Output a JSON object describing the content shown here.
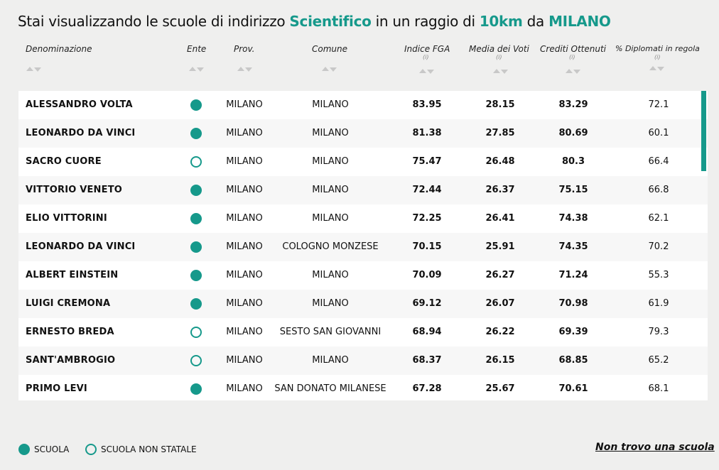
{
  "title": {
    "prefix": "Stai visualizzando le scuole di indirizzo",
    "type": "Scientifico",
    "mid": "in un raggio di",
    "radius": "10km",
    "connector": "da",
    "city": "MILANO"
  },
  "columns": {
    "name": "Denominazione",
    "ente": "Ente",
    "prov": "Prov.",
    "comune": "Comune",
    "fga": "Indice FGA",
    "media": "Media dei Voti",
    "crediti": "Crediti Ottenuti",
    "diplomati": "% Diplomati in regola",
    "info": "(i)"
  },
  "rows": [
    {
      "name": "ALESSANDRO VOLTA",
      "statale": true,
      "prov": "MILANO",
      "comune": "MILANO",
      "fga": "83.95",
      "media": "28.15",
      "crediti": "83.29",
      "diplomati": "72.1"
    },
    {
      "name": "LEONARDO DA VINCI",
      "statale": true,
      "prov": "MILANO",
      "comune": "MILANO",
      "fga": "81.38",
      "media": "27.85",
      "crediti": "80.69",
      "diplomati": "60.1"
    },
    {
      "name": "SACRO CUORE",
      "statale": false,
      "prov": "MILANO",
      "comune": "MILANO",
      "fga": "75.47",
      "media": "26.48",
      "crediti": "80.3",
      "diplomati": "66.4"
    },
    {
      "name": "VITTORIO VENETO",
      "statale": true,
      "prov": "MILANO",
      "comune": "MILANO",
      "fga": "72.44",
      "media": "26.37",
      "crediti": "75.15",
      "diplomati": "66.8"
    },
    {
      "name": "ELIO VITTORINI",
      "statale": true,
      "prov": "MILANO",
      "comune": "MILANO",
      "fga": "72.25",
      "media": "26.41",
      "crediti": "74.38",
      "diplomati": "62.1"
    },
    {
      "name": "LEONARDO DA VINCI",
      "statale": true,
      "prov": "MILANO",
      "comune": "COLOGNO MONZESE",
      "fga": "70.15",
      "media": "25.91",
      "crediti": "74.35",
      "diplomati": "70.2"
    },
    {
      "name": "ALBERT EINSTEIN",
      "statale": true,
      "prov": "MILANO",
      "comune": "MILANO",
      "fga": "70.09",
      "media": "26.27",
      "crediti": "71.24",
      "diplomati": "55.3"
    },
    {
      "name": "LUIGI CREMONA",
      "statale": true,
      "prov": "MILANO",
      "comune": "MILANO",
      "fga": "69.12",
      "media": "26.07",
      "crediti": "70.98",
      "diplomati": "61.9"
    },
    {
      "name": "ERNESTO BREDA",
      "statale": false,
      "prov": "MILANO",
      "comune": "SESTO SAN GIOVANNI",
      "fga": "68.94",
      "media": "26.22",
      "crediti": "69.39",
      "diplomati": "79.3"
    },
    {
      "name": "SANT'AMBROGIO",
      "statale": false,
      "prov": "MILANO",
      "comune": "MILANO",
      "fga": "68.37",
      "media": "26.15",
      "crediti": "68.85",
      "diplomati": "65.2"
    },
    {
      "name": "PRIMO LEVI",
      "statale": true,
      "prov": "MILANO",
      "comune": "SAN DONATO MILANESE",
      "fga": "67.28",
      "media": "25.67",
      "crediti": "70.61",
      "diplomati": "68.1"
    }
  ],
  "legend": {
    "statale": "SCUOLA",
    "non_statale": "SCUOLA NON STATALE"
  },
  "link": "Non trovo una scuola",
  "colors": {
    "accent": "#16998b",
    "background": "#efefee"
  }
}
